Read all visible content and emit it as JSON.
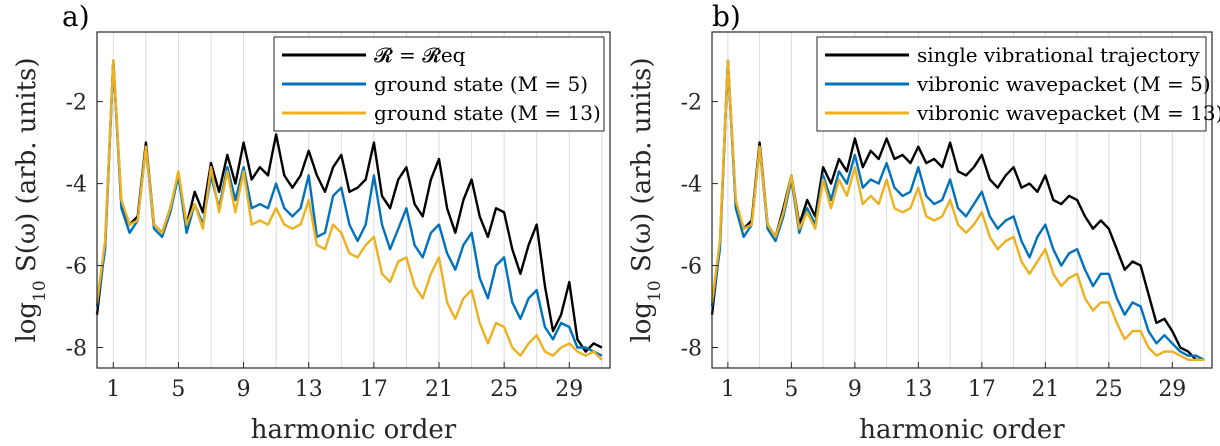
{
  "figure": {
    "panels": [
      {
        "label": "a)",
        "legend": [
          "𝓡 = 𝓡eq",
          "ground state (M = 5)",
          "ground state (M = 13)"
        ]
      },
      {
        "label": "b)",
        "legend": [
          "single vibrational trajectory",
          "vibronic wavepacket (M = 5)",
          "vibronic wavepacket (M = 13)"
        ]
      }
    ],
    "xlabel": "harmonic order",
    "ylabel_prefix": "log",
    "ylabel_sub": "10",
    "ylabel_rest": " S(ω) (arb. units)"
  },
  "colors": {
    "black": "#000000",
    "blue": "#0072BD",
    "yellow": "#EDB120",
    "grid": "#dcdcdc",
    "axis": "#262626"
  },
  "chart_data": [
    {
      "type": "line",
      "title": "a)",
      "xlabel": "harmonic order",
      "ylabel": "log10 S(ω) (arb. units)",
      "xlim": [
        0,
        31.5
      ],
      "ylim": [
        -8.5,
        -0.3
      ],
      "xticks": [
        1,
        5,
        9,
        13,
        17,
        21,
        25,
        29
      ],
      "yticks": [
        -8,
        -6,
        -4,
        -2
      ],
      "grid": "vertical at odd harmonics",
      "legend_position": "top-right",
      "series": [
        {
          "name": "R = R_eq",
          "color": "#000000",
          "x": [
            0,
            0.5,
            1,
            1.5,
            2,
            2.5,
            3,
            3.5,
            4,
            4.5,
            5,
            5.5,
            6,
            6.5,
            7,
            7.5,
            8,
            8.5,
            9,
            9.5,
            10,
            10.5,
            11,
            11.5,
            12,
            12.5,
            13,
            13.5,
            14,
            14.5,
            15,
            15.5,
            16,
            16.5,
            17,
            17.5,
            18,
            18.5,
            19,
            19.5,
            20,
            20.5,
            21,
            21.5,
            22,
            22.5,
            23,
            23.5,
            24,
            24.5,
            25,
            25.5,
            26,
            26.5,
            27,
            27.5,
            28,
            28.5,
            29,
            29.5,
            30,
            30.5,
            31
          ],
          "y": [
            -7.2,
            -5.5,
            -1.0,
            -4.5,
            -5.0,
            -4.8,
            -3.0,
            -5.0,
            -5.2,
            -4.6,
            -3.8,
            -5.0,
            -4.2,
            -4.7,
            -3.5,
            -4.2,
            -3.3,
            -4.0,
            -3.0,
            -3.9,
            -3.6,
            -3.8,
            -2.8,
            -3.8,
            -4.1,
            -3.8,
            -3.2,
            -3.8,
            -4.2,
            -3.6,
            -3.3,
            -4.2,
            -4.1,
            -3.9,
            -3.0,
            -4.3,
            -4.6,
            -3.9,
            -3.6,
            -4.5,
            -4.8,
            -3.9,
            -3.4,
            -4.6,
            -5.2,
            -4.4,
            -3.9,
            -4.8,
            -5.3,
            -4.6,
            -4.7,
            -5.6,
            -6.2,
            -5.5,
            -5.0,
            -6.5,
            -7.6,
            -7.2,
            -6.4,
            -7.8,
            -8.1,
            -7.9,
            -8.0
          ]
        },
        {
          "name": "ground state (M = 5)",
          "color": "#0072BD",
          "x": [
            0,
            0.5,
            1,
            1.5,
            2,
            2.5,
            3,
            3.5,
            4,
            4.5,
            5,
            5.5,
            6,
            6.5,
            7,
            7.5,
            8,
            8.5,
            9,
            9.5,
            10,
            10.5,
            11,
            11.5,
            12,
            12.5,
            13,
            13.5,
            14,
            14.5,
            15,
            15.5,
            16,
            16.5,
            17,
            17.5,
            18,
            18.5,
            19,
            19.5,
            20,
            20.5,
            21,
            21.5,
            22,
            22.5,
            23,
            23.5,
            24,
            24.5,
            25,
            25.5,
            26,
            26.5,
            27,
            27.5,
            28,
            28.5,
            29,
            29.5,
            30,
            30.5,
            31
          ],
          "y": [
            -7.0,
            -5.6,
            -1.0,
            -4.6,
            -5.2,
            -4.9,
            -3.1,
            -5.1,
            -5.3,
            -4.7,
            -3.8,
            -5.2,
            -4.5,
            -5.0,
            -3.8,
            -4.6,
            -3.6,
            -4.4,
            -3.6,
            -4.6,
            -4.5,
            -4.6,
            -4.0,
            -4.6,
            -4.8,
            -4.6,
            -3.8,
            -5.3,
            -5.2,
            -4.3,
            -4.1,
            -5.0,
            -5.4,
            -5.0,
            -3.8,
            -5.0,
            -5.6,
            -5.1,
            -4.6,
            -5.5,
            -5.8,
            -5.2,
            -5.0,
            -5.7,
            -6.1,
            -5.5,
            -5.2,
            -6.3,
            -6.8,
            -6.0,
            -5.8,
            -6.9,
            -7.3,
            -6.8,
            -6.6,
            -7.5,
            -7.8,
            -7.4,
            -7.5,
            -8.0,
            -8.0,
            -8.1,
            -8.2
          ]
        },
        {
          "name": "ground state (M = 13)",
          "color": "#EDB120",
          "x": [
            0,
            0.5,
            1,
            1.5,
            2,
            2.5,
            3,
            3.5,
            4,
            4.5,
            5,
            5.5,
            6,
            6.5,
            7,
            7.5,
            8,
            8.5,
            9,
            9.5,
            10,
            10.5,
            11,
            11.5,
            12,
            12.5,
            13,
            13.5,
            14,
            14.5,
            15,
            15.5,
            16,
            16.5,
            17,
            17.5,
            18,
            18.5,
            19,
            19.5,
            20,
            20.5,
            21,
            21.5,
            22,
            22.5,
            23,
            23.5,
            24,
            24.5,
            25,
            25.5,
            26,
            26.5,
            27,
            27.5,
            28,
            28.5,
            29,
            29.5,
            30,
            30.5,
            31
          ],
          "y": [
            -6.9,
            -5.4,
            -1.0,
            -4.4,
            -5.0,
            -4.9,
            -3.1,
            -5.0,
            -5.2,
            -4.6,
            -3.7,
            -5.0,
            -4.5,
            -5.1,
            -3.6,
            -4.7,
            -3.7,
            -4.7,
            -3.7,
            -5.0,
            -4.9,
            -5.0,
            -4.6,
            -5.0,
            -5.1,
            -5.0,
            -4.4,
            -5.5,
            -5.6,
            -5.0,
            -5.2,
            -5.7,
            -5.8,
            -5.5,
            -5.3,
            -6.2,
            -6.4,
            -5.9,
            -5.8,
            -6.5,
            -6.8,
            -6.2,
            -5.8,
            -6.9,
            -7.3,
            -6.8,
            -6.6,
            -7.4,
            -7.9,
            -7.4,
            -7.5,
            -8.0,
            -8.2,
            -7.9,
            -7.7,
            -8.1,
            -8.2,
            -8.0,
            -7.9,
            -8.1,
            -8.2,
            -8.1,
            -8.3
          ]
        }
      ]
    },
    {
      "type": "line",
      "title": "b)",
      "xlabel": "harmonic order",
      "ylabel": "log10 S(ω) (arb. units)",
      "xlim": [
        0,
        31.5
      ],
      "ylim": [
        -8.5,
        -0.3
      ],
      "xticks": [
        1,
        5,
        9,
        13,
        17,
        21,
        25,
        29
      ],
      "yticks": [
        -8,
        -6,
        -4,
        -2
      ],
      "grid": "vertical at odd harmonics",
      "legend_position": "top-right",
      "series": [
        {
          "name": "single vibrational trajectory",
          "color": "#000000",
          "x": [
            0,
            0.5,
            1,
            1.5,
            2,
            2.5,
            3,
            3.5,
            4,
            4.5,
            5,
            5.5,
            6,
            6.5,
            7,
            7.5,
            8,
            8.5,
            9,
            9.5,
            10,
            10.5,
            11,
            11.5,
            12,
            12.5,
            13,
            13.5,
            14,
            14.5,
            15,
            15.5,
            16,
            16.5,
            17,
            17.5,
            18,
            18.5,
            19,
            19.5,
            20,
            20.5,
            21,
            21.5,
            22,
            22.5,
            23,
            23.5,
            24,
            24.5,
            25,
            25.5,
            26,
            26.5,
            27,
            27.5,
            28,
            28.5,
            29,
            29.5,
            30,
            30.5,
            31
          ],
          "y": [
            -7.2,
            -5.5,
            -1.0,
            -4.5,
            -5.1,
            -4.9,
            -3.0,
            -5.0,
            -5.3,
            -4.6,
            -3.8,
            -5.0,
            -4.4,
            -4.8,
            -3.6,
            -4.0,
            -3.4,
            -3.7,
            -2.9,
            -3.6,
            -3.2,
            -3.4,
            -2.9,
            -3.4,
            -3.3,
            -3.5,
            -3.1,
            -3.5,
            -3.4,
            -3.6,
            -3.0,
            -3.7,
            -3.8,
            -3.6,
            -3.3,
            -3.9,
            -4.1,
            -3.8,
            -3.6,
            -4.1,
            -4.0,
            -4.2,
            -3.8,
            -4.4,
            -4.5,
            -4.3,
            -4.4,
            -4.8,
            -5.1,
            -4.9,
            -5.1,
            -5.6,
            -6.1,
            -5.9,
            -6.0,
            -6.7,
            -7.4,
            -7.3,
            -7.6,
            -8.0,
            -8.1,
            -8.3,
            -8.3
          ]
        },
        {
          "name": "vibronic wavepacket (M = 5)",
          "color": "#0072BD",
          "x": [
            0,
            0.5,
            1,
            1.5,
            2,
            2.5,
            3,
            3.5,
            4,
            4.5,
            5,
            5.5,
            6,
            6.5,
            7,
            7.5,
            8,
            8.5,
            9,
            9.5,
            10,
            10.5,
            11,
            11.5,
            12,
            12.5,
            13,
            13.5,
            14,
            14.5,
            15,
            15.5,
            16,
            16.5,
            17,
            17.5,
            18,
            18.5,
            19,
            19.5,
            20,
            20.5,
            21,
            21.5,
            22,
            22.5,
            23,
            23.5,
            24,
            24.5,
            25,
            25.5,
            26,
            26.5,
            27,
            27.5,
            28,
            28.5,
            29,
            29.5,
            30,
            30.5,
            31
          ],
          "y": [
            -7.0,
            -5.6,
            -1.0,
            -4.6,
            -5.3,
            -5.0,
            -3.1,
            -5.1,
            -5.4,
            -4.8,
            -3.9,
            -5.2,
            -4.6,
            -5.0,
            -3.8,
            -4.4,
            -3.7,
            -4.0,
            -3.3,
            -4.1,
            -3.9,
            -4.0,
            -3.5,
            -4.1,
            -4.3,
            -4.2,
            -3.6,
            -4.3,
            -4.5,
            -4.4,
            -3.9,
            -4.6,
            -4.8,
            -4.5,
            -4.2,
            -4.8,
            -5.1,
            -4.9,
            -4.8,
            -5.4,
            -5.8,
            -5.3,
            -5.0,
            -5.6,
            -6.0,
            -5.7,
            -5.6,
            -6.1,
            -6.5,
            -6.2,
            -6.2,
            -6.8,
            -7.2,
            -6.9,
            -7.0,
            -7.6,
            -7.9,
            -7.7,
            -7.9,
            -8.1,
            -8.2,
            -8.2,
            -8.3
          ]
        },
        {
          "name": "vibronic wavepacket (M = 13)",
          "color": "#EDB120",
          "x": [
            0,
            0.5,
            1,
            1.5,
            2,
            2.5,
            3,
            3.5,
            4,
            4.5,
            5,
            5.5,
            6,
            6.5,
            7,
            7.5,
            8,
            8.5,
            9,
            9.5,
            10,
            10.5,
            11,
            11.5,
            12,
            12.5,
            13,
            13.5,
            14,
            14.5,
            15,
            15.5,
            16,
            16.5,
            17,
            17.5,
            18,
            18.5,
            19,
            19.5,
            20,
            20.5,
            21,
            21.5,
            22,
            22.5,
            23,
            23.5,
            24,
            24.5,
            25,
            25.5,
            26,
            26.5,
            27,
            27.5,
            28,
            28.5,
            29,
            29.5,
            30,
            30.5,
            31
          ],
          "y": [
            -6.9,
            -5.4,
            -1.0,
            -4.4,
            -5.1,
            -5.0,
            -3.1,
            -5.0,
            -5.3,
            -4.7,
            -3.8,
            -5.1,
            -4.7,
            -5.1,
            -3.9,
            -4.6,
            -3.9,
            -4.3,
            -3.6,
            -4.5,
            -4.3,
            -4.5,
            -3.9,
            -4.6,
            -4.7,
            -4.6,
            -4.1,
            -4.8,
            -4.9,
            -4.8,
            -4.4,
            -5.0,
            -5.2,
            -5.0,
            -4.7,
            -5.3,
            -5.6,
            -5.4,
            -5.3,
            -5.9,
            -6.2,
            -5.9,
            -5.6,
            -6.2,
            -6.5,
            -6.3,
            -6.2,
            -6.8,
            -7.1,
            -6.9,
            -6.9,
            -7.4,
            -7.8,
            -7.6,
            -7.6,
            -8.0,
            -8.2,
            -8.1,
            -8.1,
            -8.2,
            -8.3,
            -8.3,
            -8.3
          ]
        }
      ]
    }
  ]
}
